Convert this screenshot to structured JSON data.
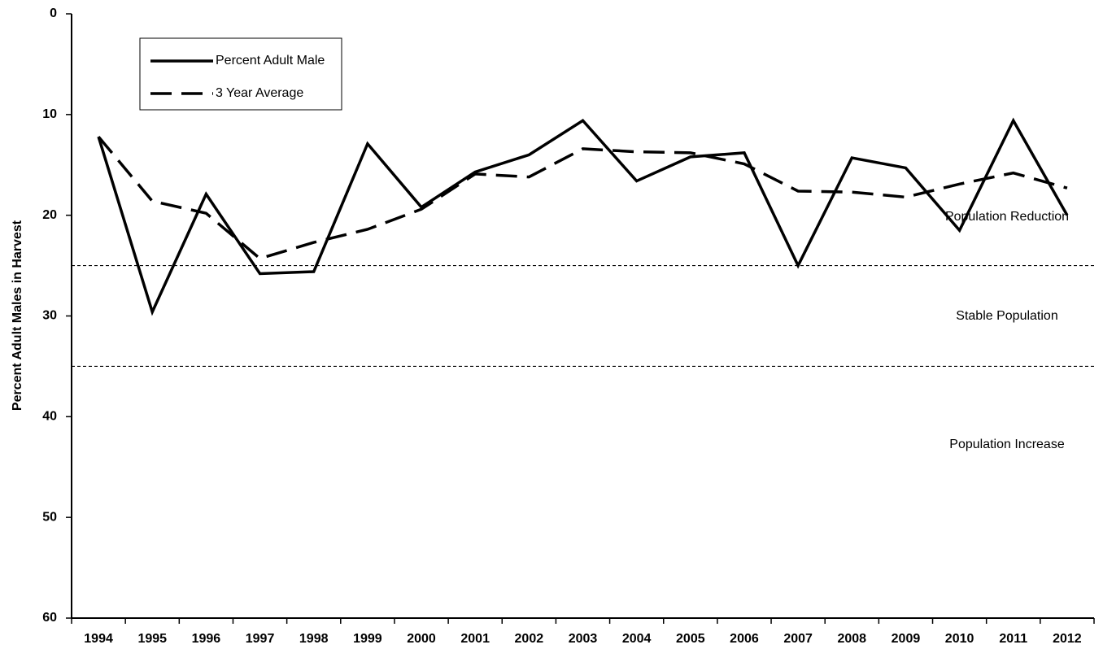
{
  "chart_data": {
    "type": "line",
    "y_label": "Percent Adult Males in Harvest",
    "categories": [
      "1994",
      "1995",
      "1996",
      "1997",
      "1998",
      "1999",
      "2000",
      "2001",
      "2002",
      "2003",
      "2004",
      "2005",
      "2006",
      "2007",
      "2008",
      "2009",
      "2010",
      "2011",
      "2012"
    ],
    "series": [
      {
        "name": "Percent Adult Male",
        "color": "#000000",
        "dash": "solid",
        "values": [
          12.2,
          29.6,
          17.9,
          25.8,
          25.6,
          12.9,
          19.2,
          15.7,
          14.0,
          10.6,
          16.6,
          14.2,
          13.8,
          25.0,
          14.3,
          15.3,
          21.5,
          10.6,
          20.0
        ]
      },
      {
        "name": "3 Year Average",
        "color": "#000000",
        "dash": "dashed",
        "values": [
          12.2,
          18.6,
          19.8,
          24.3,
          22.7,
          21.4,
          19.4,
          15.9,
          16.2,
          13.4,
          13.7,
          13.8,
          14.9,
          17.6,
          17.7,
          18.2,
          16.9,
          15.8,
          17.3
        ]
      }
    ],
    "ylim": [
      0,
      60
    ],
    "yticks": [
      0,
      10,
      20,
      30,
      40,
      50,
      60
    ],
    "y_inverted": true,
    "reference_lines": [
      25,
      35
    ],
    "annotations": [
      "Population Reduction",
      "Stable Population",
      "Population Increase"
    ],
    "legend": "upper left"
  }
}
